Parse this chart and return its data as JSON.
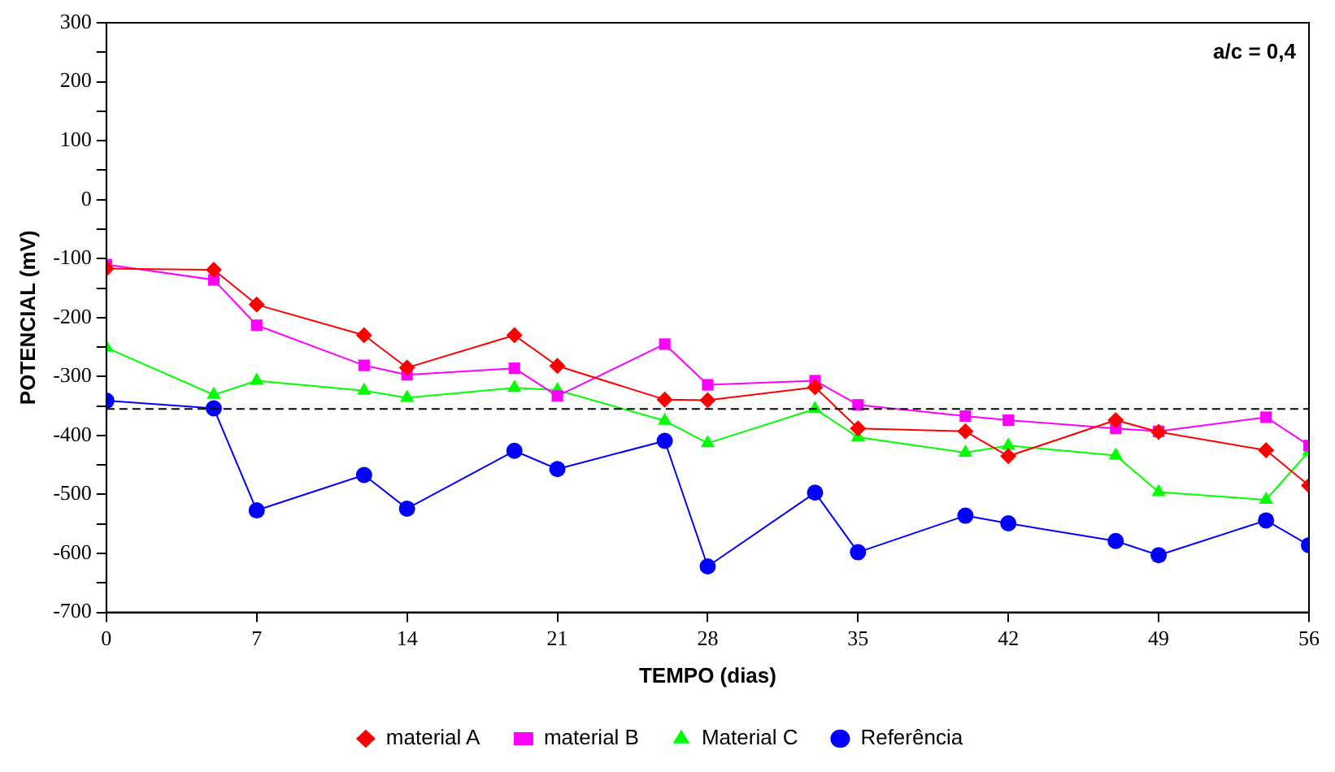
{
  "chart_data": {
    "type": "line",
    "xlabel": "TEMPO (dias)",
    "ylabel": "POTENCIAL (mV)",
    "annotations": [
      "a/c = 0,4"
    ],
    "x": [
      0,
      5,
      7,
      12,
      14,
      19,
      21,
      26,
      28,
      33,
      35,
      40,
      42,
      47,
      49,
      54,
      56
    ],
    "series": [
      {
        "name": "material A",
        "color": "#ff0000",
        "marker": "diamond",
        "values": [
          -117,
          -119,
          -178,
          -230,
          -285,
          -230,
          -282,
          -339,
          -340,
          -318,
          -388,
          -393,
          -435,
          -374,
          -394,
          -425,
          -485
        ]
      },
      {
        "name": "material B",
        "color": "#ff00ff",
        "marker": "square",
        "values": [
          -110,
          -136,
          -213,
          -281,
          -297,
          -286,
          -333,
          -245,
          -314,
          -307,
          -348,
          -367,
          -374,
          -388,
          -393,
          -369,
          -417
        ]
      },
      {
        "name": "Material C",
        "color": "#00ff00",
        "marker": "triangle",
        "values": [
          -251,
          -331,
          -307,
          -324,
          -336,
          -319,
          -323,
          -375,
          -413,
          -355,
          -403,
          -429,
          -417,
          -434,
          -496,
          -509,
          -427
        ]
      },
      {
        "name": "Referência",
        "color": "#0000ff",
        "marker": "circle",
        "values": [
          -341,
          -354,
          -527,
          -467,
          -524,
          -426,
          -457,
          -409,
          -622,
          -497,
          -598,
          -536,
          -549,
          -579,
          -603,
          -544,
          -586
        ]
      }
    ],
    "xlim": [
      0,
      56
    ],
    "xticks": [
      0,
      7,
      14,
      21,
      28,
      35,
      42,
      49,
      56
    ],
    "ylim": [
      -700,
      300
    ],
    "yticks": [
      -700,
      {
        "value": -650,
        "label": null
      },
      -600,
      {
        "value": -550,
        "label": null
      },
      -500,
      {
        "value": -450,
        "label": null
      },
      -400,
      {
        "value": -350,
        "label": null
      },
      -300,
      {
        "value": -250,
        "label": null
      },
      -200,
      {
        "value": -150,
        "label": null
      },
      -100,
      {
        "value": -50,
        "label": null
      },
      0,
      {
        "value": 50,
        "label": null
      },
      100,
      {
        "value": 150,
        "label": null
      },
      200,
      {
        "value": 250,
        "label": null
      },
      300
    ],
    "ref_lines": [
      {
        "axis": "y",
        "value": -355,
        "color": "#000000",
        "line_style": "dashed"
      }
    ],
    "grid": false,
    "legend": "bottom",
    "line_style": "solid"
  }
}
